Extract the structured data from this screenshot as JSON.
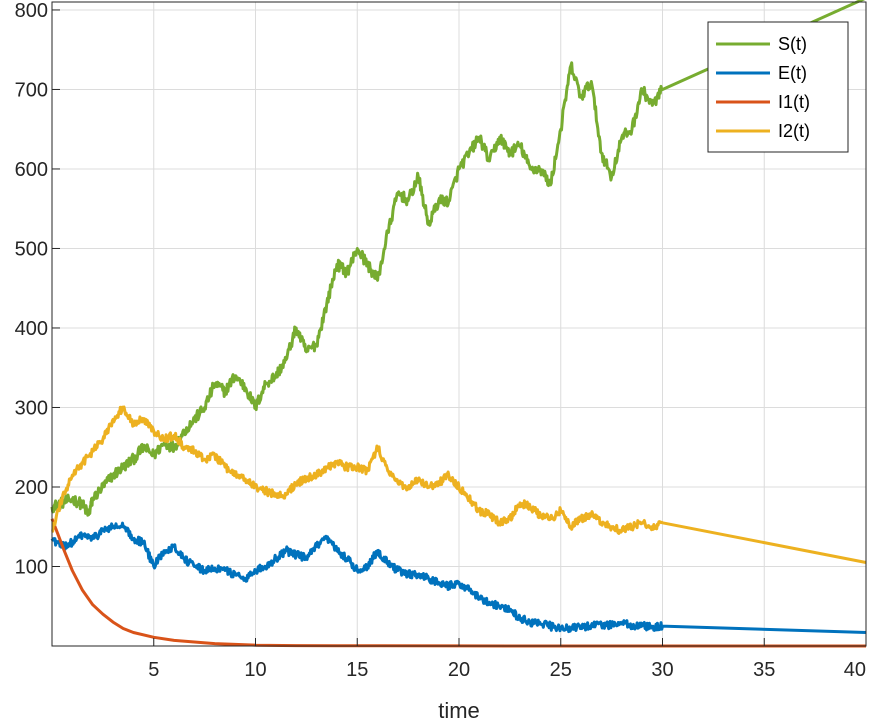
{
  "chart_data": {
    "type": "line",
    "title": "",
    "xlabel": "time",
    "ylabel": "",
    "xlim": [
      0.0,
      40
    ],
    "ylim": [
      0,
      810
    ],
    "xticks": [
      5,
      10,
      15,
      20,
      25,
      30,
      35,
      40
    ],
    "yticks": [
      100,
      200,
      300,
      400,
      500,
      600,
      700,
      800
    ],
    "grid": true,
    "legend_position": "top-right",
    "series": [
      {
        "name": "S(t)",
        "color": "#77AC30",
        "x": [
          0,
          0.5,
          1,
          1.5,
          1.8,
          2,
          2.5,
          3,
          3.5,
          4,
          4.5,
          5,
          5.5,
          6,
          6.5,
          7,
          7.5,
          8,
          8.5,
          9,
          9.5,
          10,
          10.5,
          11,
          11.5,
          12,
          12.5,
          13,
          13.5,
          14,
          14.5,
          15,
          15.5,
          16,
          16.5,
          17,
          17.5,
          18,
          18.5,
          19,
          19.5,
          20,
          20.5,
          21,
          21.5,
          22,
          22.5,
          23,
          23.5,
          24,
          24.5,
          25,
          25.5,
          26,
          26.5,
          27,
          27.5,
          28,
          28.5,
          29,
          29.5,
          30,
          40
        ],
        "y": [
          175,
          180,
          185,
          178,
          165,
          185,
          200,
          215,
          225,
          235,
          250,
          240,
          255,
          250,
          270,
          285,
          300,
          330,
          320,
          340,
          325,
          300,
          330,
          340,
          360,
          400,
          370,
          380,
          430,
          480,
          470,
          500,
          480,
          460,
          520,
          570,
          560,
          590,
          530,
          560,
          560,
          600,
          620,
          640,
          610,
          640,
          620,
          630,
          600,
          600,
          580,
          650,
          730,
          690,
          710,
          620,
          590,
          640,
          650,
          700,
          680,
          700,
          815
        ]
      },
      {
        "name": "E(t)",
        "color": "#0072BD",
        "x": [
          0,
          0.5,
          1,
          1.5,
          2,
          2.5,
          3,
          3.5,
          4,
          4.5,
          5,
          5.5,
          6,
          6.5,
          7,
          7.5,
          8,
          8.5,
          9,
          9.5,
          10,
          10.5,
          11,
          11.5,
          12,
          12.5,
          13,
          13.5,
          14,
          14.5,
          15,
          15.5,
          16,
          16.5,
          17,
          17.5,
          18,
          18.5,
          19,
          19.5,
          20,
          20.5,
          21,
          21.5,
          22,
          22.5,
          23,
          23.5,
          24,
          24.5,
          25,
          25.5,
          26,
          26.5,
          27,
          27.5,
          28,
          28.5,
          29,
          29.5,
          30,
          40
        ],
        "y": [
          135,
          125,
          130,
          140,
          135,
          145,
          150,
          150,
          135,
          130,
          100,
          120,
          125,
          110,
          100,
          95,
          98,
          95,
          90,
          85,
          95,
          100,
          110,
          120,
          115,
          110,
          125,
          135,
          120,
          110,
          95,
          100,
          120,
          105,
          95,
          90,
          90,
          85,
          80,
          75,
          80,
          70,
          60,
          55,
          50,
          45,
          35,
          30,
          28,
          25,
          22,
          22,
          24,
          26,
          26,
          27,
          28,
          26,
          25,
          24,
          25,
          17
        ]
      },
      {
        "name": "I1(t)",
        "color": "#D95319",
        "x": [
          0,
          0.3,
          0.6,
          1,
          1.5,
          2,
          2.5,
          3,
          3.5,
          4,
          5,
          6,
          7,
          8,
          9,
          10,
          12,
          14,
          16,
          20,
          25,
          30,
          35,
          40
        ],
        "y": [
          160,
          140,
          120,
          95,
          70,
          52,
          40,
          30,
          22,
          17,
          11,
          7,
          5,
          3,
          2,
          1,
          0.5,
          0.3,
          0.2,
          0.1,
          0,
          0,
          0,
          0
        ]
      },
      {
        "name": "I2(t)",
        "color": "#EDB120",
        "x": [
          0,
          0.5,
          1,
          1.5,
          2,
          2.5,
          3,
          3.5,
          4,
          4.5,
          5,
          5.5,
          6,
          6.5,
          7,
          7.5,
          8,
          8.5,
          9,
          9.5,
          10,
          10.5,
          11,
          11.5,
          12,
          12.5,
          13,
          13.5,
          14,
          14.5,
          15,
          15.5,
          16,
          16.5,
          17,
          17.5,
          18,
          18.5,
          19,
          19.5,
          20,
          20.5,
          21,
          21.5,
          22,
          22.5,
          23,
          23.5,
          24,
          24.5,
          25,
          25.5,
          26,
          26.5,
          27,
          27.5,
          28,
          28.5,
          29,
          29.5,
          30,
          40
        ],
        "y": [
          145,
          185,
          215,
          230,
          245,
          260,
          285,
          300,
          280,
          285,
          270,
          260,
          265,
          250,
          245,
          235,
          240,
          225,
          215,
          210,
          200,
          195,
          190,
          190,
          205,
          210,
          215,
          225,
          230,
          225,
          225,
          220,
          250,
          220,
          205,
          200,
          210,
          200,
          205,
          215,
          200,
          185,
          170,
          165,
          155,
          160,
          180,
          175,
          165,
          160,
          170,
          150,
          160,
          165,
          155,
          150,
          145,
          150,
          155,
          150,
          155,
          105
        ]
      }
    ]
  }
}
